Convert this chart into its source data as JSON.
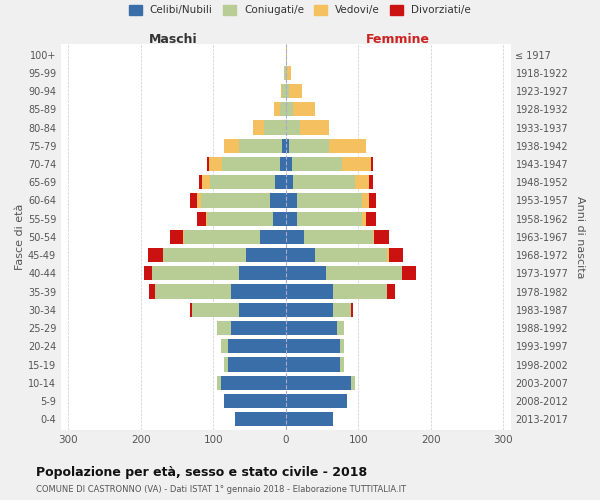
{
  "age_groups": [
    "0-4",
    "5-9",
    "10-14",
    "15-19",
    "20-24",
    "25-29",
    "30-34",
    "35-39",
    "40-44",
    "45-49",
    "50-54",
    "55-59",
    "60-64",
    "65-69",
    "70-74",
    "75-79",
    "80-84",
    "85-89",
    "90-94",
    "95-99",
    "100+"
  ],
  "birth_years": [
    "2013-2017",
    "2008-2012",
    "2003-2007",
    "1998-2002",
    "1993-1997",
    "1988-1992",
    "1983-1987",
    "1978-1982",
    "1973-1977",
    "1968-1972",
    "1963-1967",
    "1958-1962",
    "1953-1957",
    "1948-1952",
    "1943-1947",
    "1938-1942",
    "1933-1937",
    "1928-1932",
    "1923-1927",
    "1918-1922",
    "≤ 1917"
  ],
  "maschi": {
    "celibi": [
      70,
      85,
      90,
      80,
      80,
      75,
      65,
      75,
      65,
      55,
      35,
      18,
      22,
      15,
      8,
      5,
      0,
      0,
      0,
      0,
      0
    ],
    "coniugati": [
      0,
      0,
      5,
      5,
      10,
      20,
      65,
      105,
      120,
      115,
      105,
      90,
      95,
      90,
      80,
      60,
      30,
      8,
      5,
      2,
      0
    ],
    "vedovi": [
      0,
      0,
      0,
      0,
      0,
      0,
      0,
      0,
      0,
      0,
      2,
      2,
      5,
      10,
      18,
      20,
      15,
      8,
      2,
      0,
      0
    ],
    "divorziati": [
      0,
      0,
      0,
      0,
      0,
      0,
      2,
      8,
      10,
      20,
      18,
      12,
      10,
      5,
      2,
      0,
      0,
      0,
      0,
      0,
      0
    ]
  },
  "femmine": {
    "nubili": [
      65,
      85,
      90,
      75,
      75,
      70,
      65,
      65,
      55,
      40,
      25,
      15,
      15,
      10,
      8,
      5,
      0,
      0,
      0,
      0,
      0
    ],
    "coniugate": [
      0,
      0,
      5,
      5,
      5,
      10,
      25,
      75,
      105,
      100,
      95,
      90,
      90,
      85,
      70,
      55,
      20,
      10,
      5,
      2,
      0
    ],
    "vedove": [
      0,
      0,
      0,
      0,
      0,
      0,
      0,
      0,
      0,
      2,
      2,
      5,
      10,
      20,
      40,
      50,
      40,
      30,
      18,
      5,
      2
    ],
    "divorziate": [
      0,
      0,
      0,
      0,
      0,
      0,
      2,
      10,
      20,
      20,
      20,
      15,
      10,
      5,
      2,
      0,
      0,
      0,
      0,
      0,
      0
    ]
  },
  "colors": {
    "celibi": "#3a6ea8",
    "coniugati": "#b8cc96",
    "vedovi": "#f5c060",
    "divorziati": "#cc1111"
  },
  "xlim": 310,
  "title": "Popolazione per età, sesso e stato civile - 2018",
  "subtitle": "COMUNE DI CASTRONNO (VA) - Dati ISTAT 1° gennaio 2018 - Elaborazione TUTTITALIA.IT",
  "xlabel_left": "Maschi",
  "xlabel_right": "Femmine",
  "ylabel_left": "Fasce di età",
  "ylabel_right": "Anni di nascita",
  "legend_labels": [
    "Celibi/Nubili",
    "Coniugati/e",
    "Vedovi/e",
    "Divorziati/e"
  ],
  "bg_color": "#f0f0f0",
  "plot_bg": "#ffffff"
}
